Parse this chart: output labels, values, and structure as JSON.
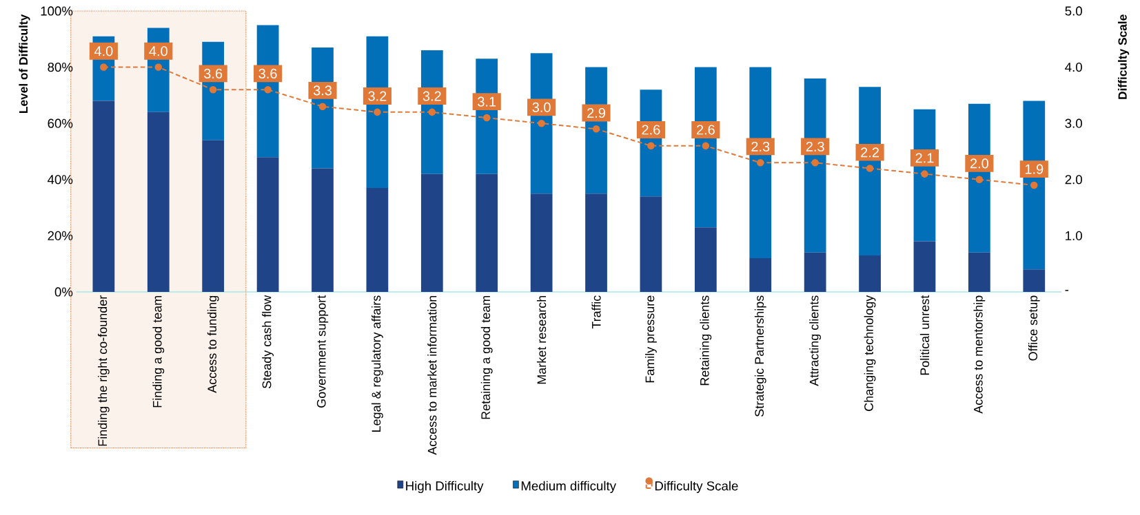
{
  "chart_data": {
    "type": "bar",
    "stacked": true,
    "ylabel": "Level of Difficulty",
    "y2label": "Difficulty Scale",
    "categories": [
      "Finding the right co-founder",
      "Finding a good team",
      "Access to funding",
      "Steady cash flow",
      "Government support",
      "Legal & regulatory affairs",
      "Access to market information",
      "Retaining a good team",
      "Market research",
      "Traffic",
      "Family pressure",
      "Retaining clients",
      "Strategic Partnerships",
      "Attracting clients",
      "Changing technology",
      "Political unrest",
      "Access to mentorship",
      "Office setup"
    ],
    "series": [
      {
        "name": "High Difficulty",
        "type": "bar",
        "color": "#1f4488",
        "values": [
          68,
          64,
          54,
          48,
          44,
          37,
          42,
          42,
          35,
          35,
          34,
          23,
          12,
          14,
          13,
          18,
          14,
          8
        ]
      },
      {
        "name": "Medium difficulty",
        "type": "bar",
        "color": "#0270b9",
        "values": [
          23,
          30,
          35,
          47,
          43,
          54,
          44,
          41,
          50,
          45,
          38,
          57,
          68,
          62,
          60,
          47,
          53,
          60
        ]
      },
      {
        "name": "Difficulty Scale",
        "type": "line",
        "axis": "y2",
        "color": "#e07838",
        "line_style": "dashed",
        "marker": "circle",
        "values": [
          4.0,
          4.0,
          3.6,
          3.6,
          3.3,
          3.2,
          3.2,
          3.1,
          3.0,
          2.9,
          2.6,
          2.6,
          2.3,
          2.3,
          2.2,
          2.1,
          2.0,
          1.9
        ],
        "value_labels": [
          "4.0",
          "4.0",
          "3.6",
          "3.6",
          "3.3",
          "3.2",
          "3.2",
          "3.1",
          "3.0",
          "2.9",
          "2.6",
          "2.6",
          "2.3",
          "2.3",
          "2.2",
          "2.1",
          "2.0",
          "1.9"
        ]
      }
    ],
    "ylim": [
      0,
      100
    ],
    "yticks": [
      {
        "value": 0,
        "label": "0%"
      },
      {
        "value": 20,
        "label": "20%"
      },
      {
        "value": 40,
        "label": "40%"
      },
      {
        "value": 60,
        "label": "60%"
      },
      {
        "value": 80,
        "label": "80%"
      },
      {
        "value": 100,
        "label": "100%"
      }
    ],
    "y2lim": [
      0,
      5
    ],
    "y2ticks": [
      {
        "value": 0,
        "label": "-"
      },
      {
        "value": 1,
        "label": "1.0"
      },
      {
        "value": 2,
        "label": "2.0"
      },
      {
        "value": 3,
        "label": "3.0"
      },
      {
        "value": 4,
        "label": "4.0"
      },
      {
        "value": 5,
        "label": "5.0"
      }
    ],
    "bands": [
      {
        "axis": "x",
        "from": "Finding the right co-founder",
        "to": "Access to funding",
        "color": "#fcf2ec"
      }
    ],
    "legend": "bottom"
  }
}
